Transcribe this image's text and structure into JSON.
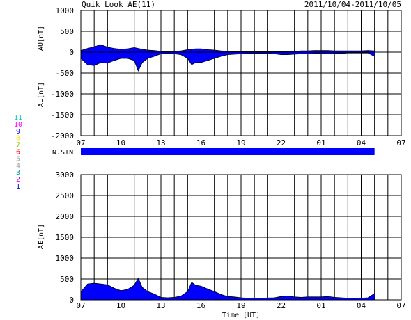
{
  "header": {
    "title": "Quik Look AE(11)",
    "date_range": "2011/10/04-2011/10/05"
  },
  "colors": {
    "fill": "#0000ff",
    "frame": "#000000",
    "grid": "#000000",
    "background": "#ffffff"
  },
  "station_legend": [
    {
      "label": "11",
      "color": "#00c8c8"
    },
    {
      "label": "10",
      "color": "#ff00ff"
    },
    {
      "label": "9",
      "color": "#0000ff"
    },
    {
      "label": "8",
      "color": "#ffe000"
    },
    {
      "label": "7",
      "color": "#80c000"
    },
    {
      "label": "6",
      "color": "#ff0000"
    },
    {
      "label": "5",
      "color": "#a0a0a0"
    },
    {
      "label": "4",
      "color": "#a0a0a0"
    },
    {
      "label": "3",
      "color": "#00a0a0"
    },
    {
      "label": "2",
      "color": "#c000c0"
    },
    {
      "label": "1",
      "color": "#0000c0"
    }
  ],
  "chart_data": [
    {
      "type": "area",
      "panel": "AU/AL",
      "ylabel_top": "AU[nT]",
      "ylabel_bottom": "AL[nT]",
      "ylim": [
        -2000,
        1000
      ],
      "yticks": [
        1000,
        500,
        0,
        -500,
        -1000,
        -1500,
        -2000
      ],
      "xlim_hours": [
        7,
        31
      ],
      "xtick_labels": [
        "07",
        "10",
        "13",
        "16",
        "19",
        "22",
        "01",
        "04",
        "07"
      ],
      "grid": true,
      "zero_line": true,
      "x_hours": [
        7.0,
        7.5,
        8.0,
        8.5,
        9.0,
        9.5,
        10.0,
        10.5,
        11.0,
        11.3,
        11.6,
        12.0,
        12.5,
        13.0,
        13.5,
        14.0,
        14.5,
        15.0,
        15.3,
        15.6,
        16.0,
        16.5,
        17.0,
        17.5,
        18.0,
        18.5,
        19.0,
        19.5,
        20.0,
        20.5,
        21.0,
        21.5,
        22.0,
        22.5,
        23.0,
        23.5,
        24.0,
        24.5,
        25.0,
        25.5,
        26.0,
        26.5,
        27.0,
        27.5,
        28.0,
        28.5,
        29.0
      ],
      "au": [
        40,
        90,
        130,
        180,
        120,
        90,
        70,
        80,
        110,
        90,
        70,
        50,
        40,
        20,
        15,
        20,
        30,
        60,
        70,
        80,
        80,
        60,
        50,
        30,
        20,
        15,
        10,
        10,
        10,
        10,
        15,
        10,
        20,
        20,
        20,
        30,
        30,
        40,
        40,
        40,
        30,
        30,
        30,
        30,
        30,
        40,
        30
      ],
      "al": [
        -150,
        -300,
        -320,
        -250,
        -260,
        -200,
        -150,
        -150,
        -200,
        -450,
        -250,
        -150,
        -100,
        -40,
        -30,
        -40,
        -60,
        -150,
        -300,
        -250,
        -250,
        -200,
        -150,
        -100,
        -60,
        -50,
        -40,
        -30,
        -30,
        -30,
        -30,
        -40,
        -60,
        -60,
        -50,
        -40,
        -40,
        -30,
        -30,
        -40,
        -30,
        -30,
        -20,
        -20,
        -20,
        -20,
        -100
      ]
    },
    {
      "type": "area",
      "panel": "AE",
      "ylabel": "AE[nT]",
      "xlabel": "Time [UT]",
      "ylim": [
        0,
        3000
      ],
      "yticks": [
        3000,
        2500,
        2000,
        1500,
        1000,
        500,
        0
      ],
      "xlim_hours": [
        7,
        31
      ],
      "xtick_labels": [
        "07",
        "10",
        "13",
        "16",
        "19",
        "22",
        "01",
        "04",
        "07"
      ],
      "grid": true,
      "x_hours": [
        7.0,
        7.5,
        8.0,
        8.5,
        9.0,
        9.5,
        10.0,
        10.5,
        11.0,
        11.3,
        11.6,
        12.0,
        12.5,
        13.0,
        13.5,
        14.0,
        14.5,
        15.0,
        15.3,
        15.6,
        16.0,
        16.5,
        17.0,
        17.5,
        18.0,
        18.5,
        19.0,
        19.5,
        20.0,
        20.5,
        21.0,
        21.5,
        22.0,
        22.5,
        23.0,
        23.5,
        24.0,
        24.5,
        25.0,
        25.5,
        26.0,
        26.5,
        27.0,
        27.5,
        28.0,
        28.5,
        29.0
      ],
      "ae": [
        190,
        380,
        400,
        380,
        360,
        280,
        220,
        250,
        350,
        520,
        300,
        200,
        140,
        60,
        50,
        60,
        90,
        200,
        420,
        350,
        330,
        260,
        200,
        130,
        80,
        70,
        50,
        40,
        40,
        40,
        45,
        50,
        80,
        90,
        70,
        60,
        70,
        70,
        70,
        80,
        60,
        50,
        40,
        40,
        40,
        50,
        150
      ]
    },
    {
      "type": "bar",
      "panel": "N.STN",
      "label": "N.STN",
      "coverage_hours": [
        7,
        29
      ]
    }
  ]
}
